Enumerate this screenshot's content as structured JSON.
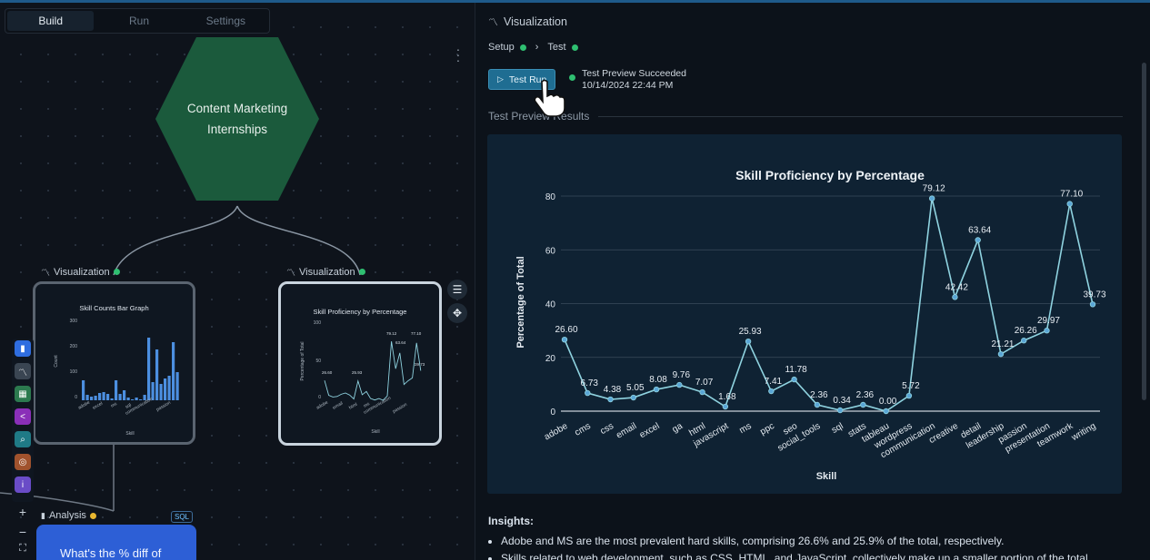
{
  "tabs": [
    {
      "label": "Build",
      "active": true
    },
    {
      "label": "Run",
      "active": false
    },
    {
      "label": "Settings",
      "active": false
    }
  ],
  "canvas": {
    "root_node": {
      "label": "Content Marketing Internships",
      "color": "#1b5a3c"
    },
    "nodes": [
      {
        "label": "Visualization",
        "status": "green",
        "mini_title": "Skill Counts Bar Graph"
      },
      {
        "label": "Visualization",
        "status": "green",
        "mini_title": "Skill Proficiency by Percentage"
      }
    ],
    "analysis_node": {
      "label": "Analysis",
      "badge": "SQL",
      "status": "yellow",
      "question": "What's the % diff of"
    },
    "mini_bar": {
      "y_ticks": [
        "300",
        "200",
        "100",
        "0"
      ],
      "ylabel": "Count",
      "xlabel": "Skill",
      "x_labels": [
        "adobe",
        "excel",
        "ms",
        "sql",
        "communication",
        "passion"
      ]
    },
    "mini_line": {
      "y_ticks": [
        "100",
        "50",
        "0"
      ],
      "ylabel": "Percentage of Total",
      "xlabel": "Skill",
      "x_labels": [
        "adobe",
        "email",
        "html",
        "ms",
        "communication",
        "passion"
      ],
      "value_labels": [
        "26.60",
        "25.93",
        "79.12",
        "63.64",
        "77.10",
        "39.73"
      ]
    },
    "toolbar_icons": [
      "bar-chart-icon",
      "line-chart-icon",
      "table-icon",
      "share-icon",
      "search-icon",
      "chat-icon",
      "info-icon"
    ]
  },
  "panel": {
    "title": "Visualization",
    "breadcrumb": [
      {
        "label": "Setup",
        "status": "green"
      },
      {
        "label": "Test",
        "status": "green"
      }
    ],
    "test_button": "Test Run",
    "status_line1": "Test Preview Succeeded",
    "status_line2": "10/14/2024 22:44 PM",
    "section_title": "Test Preview Results",
    "insights_title": "Insights:",
    "insights": [
      "Adobe and MS are the most prevalent hard skills, comprising 26.6% and 25.9% of the total, respectively.",
      "Skills related to web development, such as CSS, HTML, and JavaScript, collectively make up a smaller portion of the total,"
    ]
  },
  "chart_data": {
    "type": "line",
    "title": "Skill Proficiency by Percentage",
    "xlabel": "Skill",
    "ylabel": "Percentage of Total",
    "ylim": [
      0,
      80
    ],
    "y_ticks": [
      0,
      20,
      40,
      60,
      80
    ],
    "grid": true,
    "line_color": "#8fd3e0",
    "x": [
      "adobe",
      "cms",
      "css",
      "email",
      "excel",
      "ga",
      "html",
      "javascript",
      "ms",
      "ppc",
      "seo",
      "social_tools",
      "sql",
      "stats",
      "tableau",
      "wordpress",
      "communication",
      "creative",
      "detail",
      "leadership",
      "passion",
      "presentation",
      "teamwork",
      "writing"
    ],
    "values": [
      26.6,
      6.73,
      4.38,
      5.05,
      8.08,
      9.76,
      7.07,
      1.68,
      25.93,
      7.41,
      11.78,
      2.36,
      0.34,
      2.36,
      0.0,
      5.72,
      79.12,
      42.42,
      63.64,
      21.21,
      26.26,
      29.97,
      77.1,
      39.73
    ],
    "value_labels": [
      "26.60",
      "6.73",
      "4.38",
      "5.05",
      "8.08",
      "9.76",
      "7.07",
      "1.68",
      "25.93",
      "7.41",
      "11.78",
      "2.36",
      "0.34",
      "2.36",
      "0.00",
      "5.72",
      "79.12",
      "42.42",
      "63.64",
      "21.21",
      "26.26",
      "29.97",
      "77.10",
      "39.73"
    ]
  }
}
